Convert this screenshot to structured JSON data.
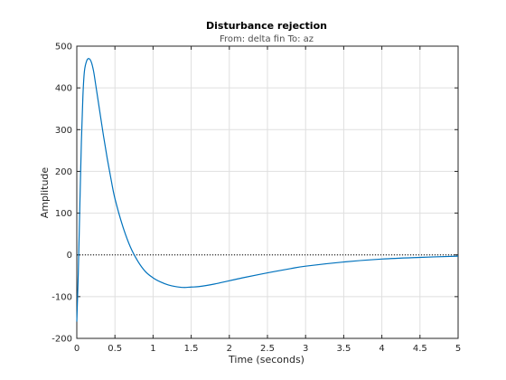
{
  "chart_data": {
    "type": "line",
    "title": "Disturbance rejection",
    "subtitle": "From: delta fin  To: az",
    "xlabel": "Time (seconds)",
    "ylabel": "Amplitude",
    "xlim": [
      0,
      5
    ],
    "ylim": [
      -200,
      500
    ],
    "xticks": [
      0,
      0.5,
      1,
      1.5,
      2,
      2.5,
      3,
      3.5,
      4,
      4.5,
      5
    ],
    "xtick_labels": [
      "0",
      "0.5",
      "1",
      "1.5",
      "2",
      "2.5",
      "3",
      "3.5",
      "4",
      "4.5",
      "5"
    ],
    "yticks": [
      -200,
      -100,
      0,
      100,
      200,
      300,
      400,
      500
    ],
    "ytick_labels": [
      "-200",
      "-100",
      "0",
      "100",
      "200",
      "300",
      "400",
      "500"
    ],
    "grid": true,
    "reference_line": {
      "y": 0,
      "style": "dotted"
    },
    "series": [
      {
        "color": "#0072bd",
        "x": [
          0,
          0.02,
          0.04,
          0.06,
          0.08,
          0.1,
          0.13,
          0.16,
          0.19,
          0.22,
          0.25,
          0.3,
          0.35,
          0.4,
          0.45,
          0.5,
          0.6,
          0.7,
          0.8,
          0.9,
          1.0,
          1.1,
          1.2,
          1.3,
          1.4,
          1.5,
          1.6,
          1.8,
          2.0,
          2.2,
          2.5,
          2.8,
          3.0,
          3.5,
          4.0,
          4.5,
          5.0
        ],
        "y": [
          -160,
          -40,
          120,
          270,
          380,
          440,
          465,
          470,
          462,
          440,
          405,
          345,
          285,
          230,
          180,
          135,
          70,
          20,
          -15,
          -40,
          -55,
          -65,
          -72,
          -76,
          -78,
          -77,
          -76,
          -70,
          -62,
          -54,
          -43,
          -33,
          -27,
          -17,
          -10,
          -6,
          -3
        ]
      }
    ]
  }
}
